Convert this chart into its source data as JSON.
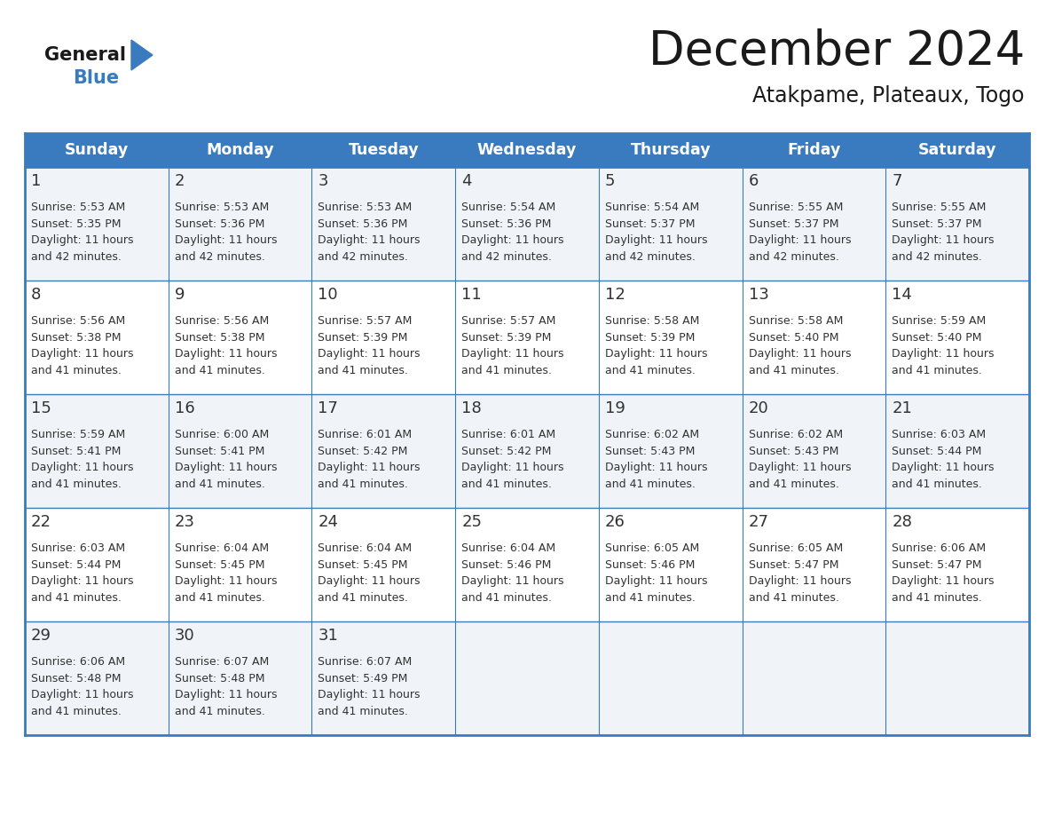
{
  "title": "December 2024",
  "subtitle": "Atakpame, Plateaux, Togo",
  "days_of_week": [
    "Sunday",
    "Monday",
    "Tuesday",
    "Wednesday",
    "Thursday",
    "Friday",
    "Saturday"
  ],
  "header_bg": "#3a7bbf",
  "header_text": "#ffffff",
  "border_color": "#3a7bbf",
  "text_color": "#333333",
  "title_color": "#1a1a1a",
  "logo_general_color": "#1a1a1a",
  "logo_blue_color": "#3a7bbf",
  "logo_triangle_color": "#3a7bbf",
  "row_bg_odd": "#f0f4f8",
  "row_bg_even": "#ffffff",
  "weeks": [
    [
      {
        "day": 1,
        "sunrise": "5:53 AM",
        "sunset": "5:35 PM",
        "daylight": "11 hours and 42 minutes."
      },
      {
        "day": 2,
        "sunrise": "5:53 AM",
        "sunset": "5:36 PM",
        "daylight": "11 hours and 42 minutes."
      },
      {
        "day": 3,
        "sunrise": "5:53 AM",
        "sunset": "5:36 PM",
        "daylight": "11 hours and 42 minutes."
      },
      {
        "day": 4,
        "sunrise": "5:54 AM",
        "sunset": "5:36 PM",
        "daylight": "11 hours and 42 minutes."
      },
      {
        "day": 5,
        "sunrise": "5:54 AM",
        "sunset": "5:37 PM",
        "daylight": "11 hours and 42 minutes."
      },
      {
        "day": 6,
        "sunrise": "5:55 AM",
        "sunset": "5:37 PM",
        "daylight": "11 hours and 42 minutes."
      },
      {
        "day": 7,
        "sunrise": "5:55 AM",
        "sunset": "5:37 PM",
        "daylight": "11 hours and 42 minutes."
      }
    ],
    [
      {
        "day": 8,
        "sunrise": "5:56 AM",
        "sunset": "5:38 PM",
        "daylight": "11 hours and 41 minutes."
      },
      {
        "day": 9,
        "sunrise": "5:56 AM",
        "sunset": "5:38 PM",
        "daylight": "11 hours and 41 minutes."
      },
      {
        "day": 10,
        "sunrise": "5:57 AM",
        "sunset": "5:39 PM",
        "daylight": "11 hours and 41 minutes."
      },
      {
        "day": 11,
        "sunrise": "5:57 AM",
        "sunset": "5:39 PM",
        "daylight": "11 hours and 41 minutes."
      },
      {
        "day": 12,
        "sunrise": "5:58 AM",
        "sunset": "5:39 PM",
        "daylight": "11 hours and 41 minutes."
      },
      {
        "day": 13,
        "sunrise": "5:58 AM",
        "sunset": "5:40 PM",
        "daylight": "11 hours and 41 minutes."
      },
      {
        "day": 14,
        "sunrise": "5:59 AM",
        "sunset": "5:40 PM",
        "daylight": "11 hours and 41 minutes."
      }
    ],
    [
      {
        "day": 15,
        "sunrise": "5:59 AM",
        "sunset": "5:41 PM",
        "daylight": "11 hours and 41 minutes."
      },
      {
        "day": 16,
        "sunrise": "6:00 AM",
        "sunset": "5:41 PM",
        "daylight": "11 hours and 41 minutes."
      },
      {
        "day": 17,
        "sunrise": "6:01 AM",
        "sunset": "5:42 PM",
        "daylight": "11 hours and 41 minutes."
      },
      {
        "day": 18,
        "sunrise": "6:01 AM",
        "sunset": "5:42 PM",
        "daylight": "11 hours and 41 minutes."
      },
      {
        "day": 19,
        "sunrise": "6:02 AM",
        "sunset": "5:43 PM",
        "daylight": "11 hours and 41 minutes."
      },
      {
        "day": 20,
        "sunrise": "6:02 AM",
        "sunset": "5:43 PM",
        "daylight": "11 hours and 41 minutes."
      },
      {
        "day": 21,
        "sunrise": "6:03 AM",
        "sunset": "5:44 PM",
        "daylight": "11 hours and 41 minutes."
      }
    ],
    [
      {
        "day": 22,
        "sunrise": "6:03 AM",
        "sunset": "5:44 PM",
        "daylight": "11 hours and 41 minutes."
      },
      {
        "day": 23,
        "sunrise": "6:04 AM",
        "sunset": "5:45 PM",
        "daylight": "11 hours and 41 minutes."
      },
      {
        "day": 24,
        "sunrise": "6:04 AM",
        "sunset": "5:45 PM",
        "daylight": "11 hours and 41 minutes."
      },
      {
        "day": 25,
        "sunrise": "6:04 AM",
        "sunset": "5:46 PM",
        "daylight": "11 hours and 41 minutes."
      },
      {
        "day": 26,
        "sunrise": "6:05 AM",
        "sunset": "5:46 PM",
        "daylight": "11 hours and 41 minutes."
      },
      {
        "day": 27,
        "sunrise": "6:05 AM",
        "sunset": "5:47 PM",
        "daylight": "11 hours and 41 minutes."
      },
      {
        "day": 28,
        "sunrise": "6:06 AM",
        "sunset": "5:47 PM",
        "daylight": "11 hours and 41 minutes."
      }
    ],
    [
      {
        "day": 29,
        "sunrise": "6:06 AM",
        "sunset": "5:48 PM",
        "daylight": "11 hours and 41 minutes."
      },
      {
        "day": 30,
        "sunrise": "6:07 AM",
        "sunset": "5:48 PM",
        "daylight": "11 hours and 41 minutes."
      },
      {
        "day": 31,
        "sunrise": "6:07 AM",
        "sunset": "5:49 PM",
        "daylight": "11 hours and 41 minutes."
      },
      null,
      null,
      null,
      null
    ]
  ]
}
